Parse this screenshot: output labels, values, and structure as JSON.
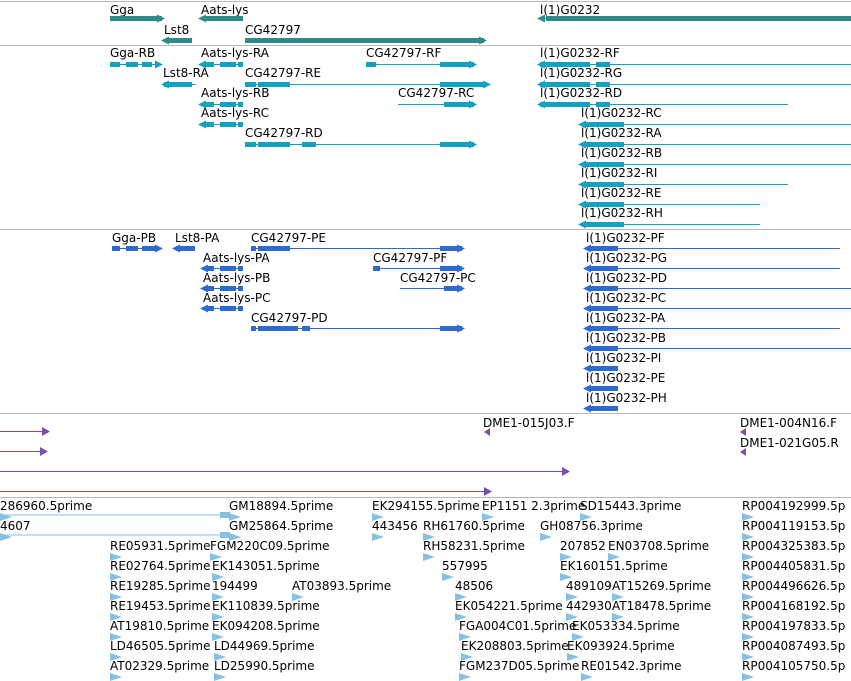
{
  "browser": {
    "title": "Genome track viewer",
    "colors": {
      "gene": "#2e8b8b",
      "transcript": "#0fa3bf",
      "protein": "#2e6bd1",
      "clone": "#7a4fb0",
      "est": "#86c1e3",
      "separator": "#b8b8b8"
    }
  },
  "tracks": {
    "genes": [
      {
        "label": "Gga",
        "strand": "+"
      },
      {
        "label": "Lst8",
        "strand": "-"
      },
      {
        "label": "Aats-lys",
        "strand": "-"
      },
      {
        "label": "CG42797",
        "strand": "+"
      },
      {
        "label": "l(1)G0232",
        "strand": "-"
      }
    ],
    "transcripts": [
      {
        "label": "Gga-RB",
        "strand": "+"
      },
      {
        "label": "Lst8-RA",
        "strand": "-"
      },
      {
        "label": "Aats-lys-RA",
        "strand": "-"
      },
      {
        "label": "Aats-lys-RB",
        "strand": "-"
      },
      {
        "label": "Aats-lys-RC",
        "strand": "-"
      },
      {
        "label": "CG42797-RE",
        "strand": "+"
      },
      {
        "label": "CG42797-RD",
        "strand": "+"
      },
      {
        "label": "CG42797-RF",
        "strand": "+"
      },
      {
        "label": "CG42797-RC",
        "strand": "+"
      },
      {
        "label": "l(1)G0232-RF",
        "strand": "-"
      },
      {
        "label": "l(1)G0232-RG",
        "strand": "-"
      },
      {
        "label": "l(1)G0232-RD",
        "strand": "-"
      },
      {
        "label": "l(1)G0232-RC",
        "strand": "-"
      },
      {
        "label": "l(1)G0232-RA",
        "strand": "-"
      },
      {
        "label": "l(1)G0232-RB",
        "strand": "-"
      },
      {
        "label": "l(1)G0232-RI",
        "strand": "-"
      },
      {
        "label": "l(1)G0232-RE",
        "strand": "-"
      },
      {
        "label": "l(1)G0232-RH",
        "strand": "-"
      }
    ],
    "proteins": [
      {
        "label": "Gga-PB",
        "strand": "+"
      },
      {
        "label": "Lst8-PA",
        "strand": "-"
      },
      {
        "label": "Aats-lys-PA",
        "strand": "-"
      },
      {
        "label": "Aats-lys-PB",
        "strand": "-"
      },
      {
        "label": "Aats-lys-PC",
        "strand": "-"
      },
      {
        "label": "CG42797-PE",
        "strand": "+"
      },
      {
        "label": "CG42797-PD",
        "strand": "+"
      },
      {
        "label": "CG42797-PF",
        "strand": "+"
      },
      {
        "label": "CG42797-PC",
        "strand": "+"
      },
      {
        "label": "l(1)G0232-PF",
        "strand": "-"
      },
      {
        "label": "l(1)G0232-PG",
        "strand": "-"
      },
      {
        "label": "l(1)G0232-PD",
        "strand": "-"
      },
      {
        "label": "l(1)G0232-PC",
        "strand": "-"
      },
      {
        "label": "l(1)G0232-PA",
        "strand": "-"
      },
      {
        "label": "l(1)G0232-PB",
        "strand": "-"
      },
      {
        "label": "l(1)G0232-PI",
        "strand": "-"
      },
      {
        "label": "l(1)G0232-PE",
        "strand": "-"
      },
      {
        "label": "l(1)G0232-PH",
        "strand": "-"
      }
    ],
    "clones": [
      {
        "label": "DME1-015J03.F"
      },
      {
        "label": "DME1-004N16.F"
      },
      {
        "label": "DME1-021G05.R"
      }
    ],
    "ests": [
      {
        "label": "286960.5prime"
      },
      {
        "label": "4607"
      },
      {
        "label": "GM18894.5prime"
      },
      {
        "label": "GM25864.5prime"
      },
      {
        "label": "EK294155.5prime"
      },
      {
        "label": "EP1151 2.3prime"
      },
      {
        "label": "SD15443.3prime"
      },
      {
        "label": "RP004192999.5p"
      },
      {
        "label": "443456"
      },
      {
        "label": "RH61760.5prime"
      },
      {
        "label": "GH08756.3prime"
      },
      {
        "label": "RP004119153.5p"
      },
      {
        "label": "RE05931.5prime"
      },
      {
        "label": "FGM220C09.5prime"
      },
      {
        "label": "RH58231.5prime"
      },
      {
        "label": "207852"
      },
      {
        "label": "EN03708.5prime"
      },
      {
        "label": "RP004325383.5p"
      },
      {
        "label": "RE02764.5prime"
      },
      {
        "label": "EK143051.5prime"
      },
      {
        "label": "557995"
      },
      {
        "label": "EK160151.5prime"
      },
      {
        "label": "RP004405831.5p"
      },
      {
        "label": "RE19285.5prime"
      },
      {
        "label": "194499"
      },
      {
        "label": "AT03893.5prime"
      },
      {
        "label": "48506"
      },
      {
        "label": "489109"
      },
      {
        "label": "AT15269.5prime"
      },
      {
        "label": "RP004496626.5p"
      },
      {
        "label": "RE19453.5prime"
      },
      {
        "label": "EK110839.5prime"
      },
      {
        "label": "EK054221.5prime"
      },
      {
        "label": "442930"
      },
      {
        "label": "AT18478.5prime"
      },
      {
        "label": "RP004168192.5p"
      },
      {
        "label": "AT19810.5prime"
      },
      {
        "label": "EK094208.5prime"
      },
      {
        "label": "FGA004C01.5prime"
      },
      {
        "label": "EK053334.5prime"
      },
      {
        "label": "RP004197833.5p"
      },
      {
        "label": "LD46505.5prime"
      },
      {
        "label": "LD44969.5prime"
      },
      {
        "label": "EK208803.5prime"
      },
      {
        "label": "EK093924.5prime"
      },
      {
        "label": "RP004087493.5p"
      },
      {
        "label": "AT02329.5prime"
      },
      {
        "label": "LD25990.5prime"
      },
      {
        "label": "FGM237D05.5prime"
      },
      {
        "label": "RE01542.3prime"
      },
      {
        "label": "RP004105750.5p"
      }
    ]
  }
}
